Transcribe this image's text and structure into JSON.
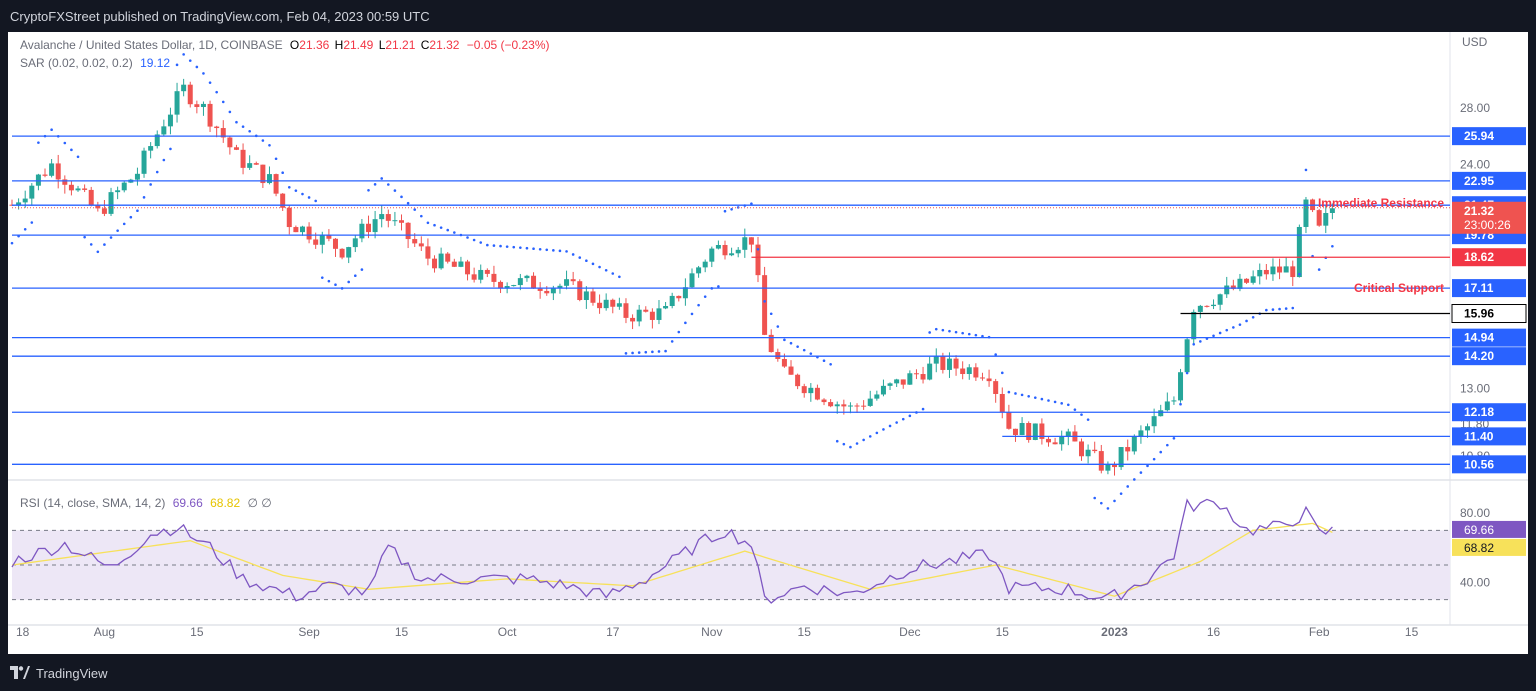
{
  "header": {
    "published": "CryptoFXStreet published on TradingView.com, Feb 04, 2023 00:59 UTC"
  },
  "legend": {
    "symbol": "Avalanche / United States Dollar, 1D, COINBASE",
    "o_label": "O",
    "o_value": "21.36",
    "h_label": "H",
    "h_value": "21.49",
    "l_label": "L",
    "l_value": "21.21",
    "c_label": "C",
    "c_value": "21.32",
    "change": "−0.05 (−0.23%)",
    "sar_label": "SAR (0.02, 0.02, 0.2)",
    "sar_value": "19.12",
    "rsi_label": "RSI (14, close, SMA, 14, 2)",
    "rsi_value": "69.66",
    "rsi_sma_value": "68.82",
    "rsi_extra": "∅ ∅"
  },
  "footer": {
    "brand_icon": "tradingview-logo-icon",
    "brand": "TradingView"
  },
  "colors": {
    "up": "#26a69a",
    "down": "#ef5350",
    "sar": "#2962ff",
    "hline": "#2962ff",
    "resistance": "#f23645",
    "support_black": "#000000",
    "rsi": "#7e57c2",
    "rsi_sma": "#f7e15a",
    "rsi_band": "#ede7f6",
    "axis_text": "#6a6d78"
  },
  "chart_data": {
    "type": "candlestick",
    "title": "Avalanche / United States Dollar, 1D, COINBASE",
    "currency": "USD",
    "price_scale": "log",
    "price_range": [
      10.2,
      34.5
    ],
    "price_axis_ticks": [
      "28.00",
      "24.00",
      "13.00",
      "11.80",
      "10.80"
    ],
    "x_ticks": [
      "18",
      "Aug",
      "15",
      "Sep",
      "15",
      "Oct",
      "17",
      "Nov",
      "15",
      "Dec",
      "15",
      "2023",
      "16",
      "Feb",
      "15"
    ],
    "x_range": [
      "2022-07-18",
      "2023-02-19"
    ],
    "last_price": "21.32",
    "countdown": "23:00:26",
    "horizontal_levels": [
      {
        "value": 25.94,
        "label": "25.94",
        "color": "#2962ff",
        "start": "2022-07-18"
      },
      {
        "value": 22.95,
        "label": "22.95",
        "color": "#2962ff",
        "start": "2022-07-18"
      },
      {
        "value": 21.47,
        "label": "21.47",
        "color": "#2962ff",
        "start": "2022-07-18",
        "annotation": "Immediate Resistance",
        "annotation_color": "#f23645"
      },
      {
        "value": 19.78,
        "label": "19.78",
        "color": "#2962ff",
        "start": "2022-07-18"
      },
      {
        "value": 18.62,
        "label": "18.62",
        "color": "#f23645",
        "start": "2022-11-07"
      },
      {
        "value": 17.11,
        "label": "17.11",
        "color": "#2962ff",
        "start": "2022-07-18",
        "annotation": "Critical Support",
        "annotation_color": "#f23645"
      },
      {
        "value": 15.96,
        "label": "15.96",
        "color": "#000000",
        "start": "2023-01-11"
      },
      {
        "value": 14.94,
        "label": "14.94",
        "color": "#2962ff",
        "start": "2022-07-18"
      },
      {
        "value": 14.2,
        "label": "14.20",
        "color": "#2962ff",
        "start": "2022-07-18"
      },
      {
        "value": 12.18,
        "label": "12.18",
        "color": "#2962ff",
        "start": "2022-07-18"
      },
      {
        "value": 11.4,
        "label": "11.40",
        "color": "#2962ff",
        "start": "2022-12-15"
      },
      {
        "value": 10.56,
        "label": "10.56",
        "color": "#2962ff",
        "start": "2022-07-18"
      }
    ],
    "sar_current": "19.12",
    "close_keypoints": [
      [
        "2022-07-18",
        21.5
      ],
      [
        "2022-07-24",
        24.0
      ],
      [
        "2022-07-31",
        21.0
      ],
      [
        "2022-08-06",
        23.5
      ],
      [
        "2022-08-10",
        27.0
      ],
      [
        "2022-08-13",
        29.5
      ],
      [
        "2022-08-16",
        28.0
      ],
      [
        "2022-08-21",
        24.5
      ],
      [
        "2022-08-26",
        23.0
      ],
      [
        "2022-08-29",
        20.5
      ],
      [
        "2022-09-06",
        19.0
      ],
      [
        "2022-09-12",
        21.0
      ],
      [
        "2022-09-19",
        18.6
      ],
      [
        "2022-09-28",
        17.5
      ],
      [
        "2022-10-10",
        17.2
      ],
      [
        "2022-10-19",
        15.9
      ],
      [
        "2022-10-25",
        16.0
      ],
      [
        "2022-11-01",
        19.0
      ],
      [
        "2022-11-07",
        19.6
      ],
      [
        "2022-11-09",
        15.0
      ],
      [
        "2022-11-12",
        13.5
      ],
      [
        "2022-11-20",
        12.5
      ],
      [
        "2022-11-22",
        12.3
      ],
      [
        "2022-12-01",
        13.4
      ],
      [
        "2022-12-05",
        13.9
      ],
      [
        "2022-12-13",
        13.6
      ],
      [
        "2022-12-16",
        11.7
      ],
      [
        "2022-12-25",
        11.3
      ],
      [
        "2022-12-31",
        10.4
      ],
      [
        "2023-01-07",
        11.9
      ],
      [
        "2023-01-10",
        12.6
      ],
      [
        "2023-01-13",
        16.3
      ],
      [
        "2023-01-20",
        17.2
      ],
      [
        "2023-01-24",
        17.9
      ],
      [
        "2023-01-28",
        18.0
      ],
      [
        "2023-01-30",
        21.5
      ],
      [
        "2023-02-01",
        20.0
      ],
      [
        "2023-02-03",
        21.32
      ]
    ],
    "rsi": {
      "levels": [
        "80.00",
        "40.00"
      ],
      "dashed_levels": [
        70,
        50,
        30
      ],
      "current": "69.66",
      "sma_current": "68.82",
      "keypoints": [
        [
          "2022-07-18",
          52
        ],
        [
          "2022-07-26",
          62
        ],
        [
          "2022-08-02",
          48
        ],
        [
          "2022-08-08",
          68
        ],
        [
          "2022-08-12",
          72
        ],
        [
          "2022-08-17",
          60
        ],
        [
          "2022-08-22",
          42
        ],
        [
          "2022-08-30",
          32
        ],
        [
          "2022-09-04",
          38
        ],
        [
          "2022-09-10",
          34
        ],
        [
          "2022-09-13",
          60
        ],
        [
          "2022-09-18",
          42
        ],
        [
          "2022-10-04",
          42
        ],
        [
          "2022-10-10",
          38
        ],
        [
          "2022-10-16",
          32
        ],
        [
          "2022-10-22",
          42
        ],
        [
          "2022-10-30",
          62
        ],
        [
          "2022-11-03",
          70
        ],
        [
          "2022-11-07",
          62
        ],
        [
          "2022-11-09",
          30
        ],
        [
          "2022-11-15",
          38
        ],
        [
          "2022-11-22",
          33
        ],
        [
          "2022-12-01",
          48
        ],
        [
          "2022-12-07",
          52
        ],
        [
          "2022-12-13",
          56
        ],
        [
          "2022-12-16",
          37
        ],
        [
          "2022-12-25",
          36
        ],
        [
          "2022-12-31",
          30
        ],
        [
          "2023-01-06",
          42
        ],
        [
          "2023-01-10",
          56
        ],
        [
          "2023-01-12",
          84
        ],
        [
          "2023-01-17",
          86
        ],
        [
          "2023-01-21",
          70
        ],
        [
          "2023-01-26",
          72
        ],
        [
          "2023-01-30",
          80
        ],
        [
          "2023-02-01",
          68
        ],
        [
          "2023-02-03",
          69.66
        ]
      ],
      "sma_keypoints": [
        [
          "2022-07-18",
          50
        ],
        [
          "2022-08-14",
          64
        ],
        [
          "2022-08-28",
          44
        ],
        [
          "2022-09-10",
          36
        ],
        [
          "2022-10-01",
          42
        ],
        [
          "2022-10-20",
          38
        ],
        [
          "2022-11-06",
          58
        ],
        [
          "2022-11-25",
          36
        ],
        [
          "2022-12-14",
          50
        ],
        [
          "2023-01-01",
          32
        ],
        [
          "2023-01-14",
          52
        ],
        [
          "2023-01-22",
          70
        ],
        [
          "2023-01-31",
          74
        ],
        [
          "2023-02-03",
          68.82
        ]
      ]
    }
  }
}
